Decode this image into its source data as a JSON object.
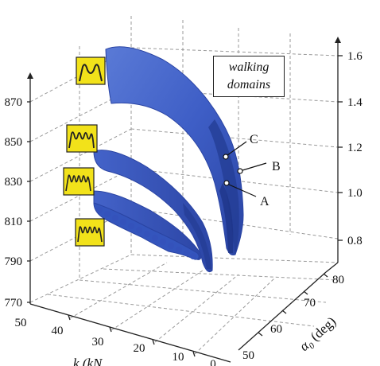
{
  "chart_data": {
    "type": "surface3d",
    "annotation": {
      "line1": "walking",
      "line2": "domains"
    },
    "z_axis_left": {
      "ticks": [
        "870",
        "850",
        "830",
        "810",
        "790",
        "770"
      ]
    },
    "z_axis_right": {
      "ticks": [
        "1.6",
        "1.4",
        "1.2",
        "1.0",
        "0.8"
      ]
    },
    "x_axis": {
      "label": "k (kN",
      "ticks": [
        "50",
        "40",
        "30",
        "20",
        "10",
        "0"
      ]
    },
    "y_axis": {
      "label": "α",
      "label_sub": "0",
      "label_rest": " (deg)",
      "ticks": [
        "50",
        "60",
        "70",
        "80"
      ]
    },
    "points": [
      "A",
      "B",
      "C"
    ],
    "domains": [
      {
        "gait_icon": "single-hump"
      },
      {
        "gait_icon": "double-hump"
      },
      {
        "gait_icon": "triple-hump"
      },
      {
        "gait_icon": "quad-hump"
      }
    ],
    "colors": {
      "surface": "#3f5fc4",
      "surface_dark": "#27409a",
      "icon_bg": "#f2e21a"
    }
  }
}
